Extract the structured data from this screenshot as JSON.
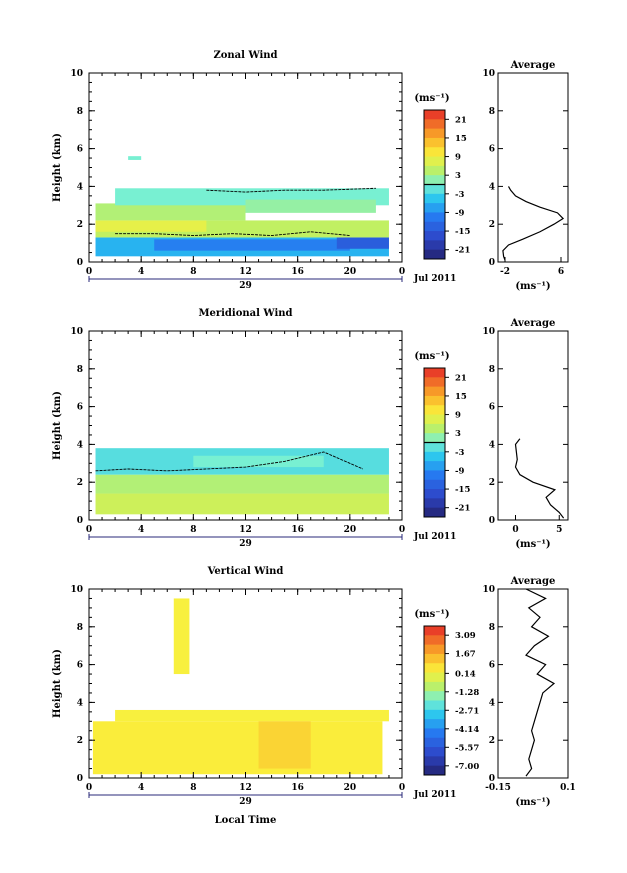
{
  "figure": {
    "x_axis_title": "Local Time",
    "date_label": "Jul 2011",
    "day_label": "29",
    "y_axis_title": "Height (km)",
    "unit_label": "(ms⁻¹)",
    "average_title": "Average",
    "avg_x_unit": "(ms⁻¹)"
  },
  "panels": [
    {
      "title": "Zonal Wind",
      "colorbar_ticks": [
        "21",
        "15",
        "9",
        "3",
        "-3",
        "-9",
        "-15",
        "-21"
      ]
    },
    {
      "title": "Meridional Wind",
      "colorbar_ticks": [
        "21",
        "15",
        "9",
        "3",
        "-3",
        "-9",
        "-15",
        "-21"
      ]
    },
    {
      "title": "Vertical Wind",
      "colorbar_ticks": [
        "3.09",
        "1.67",
        "0.14",
        "-1.28",
        "-2.71",
        "-4.14",
        "-5.57",
        "-7.00"
      ]
    }
  ],
  "chart_data": [
    {
      "type": "heatmap",
      "title": "Zonal Wind",
      "xlabel": "",
      "ylabel": "Height (km)",
      "xticks": [
        "0",
        "4",
        "8",
        "12",
        "16",
        "20",
        "0"
      ],
      "yticks": [
        "0",
        "2",
        "4",
        "6",
        "8",
        "10"
      ],
      "xlim": [
        0,
        24
      ],
      "ylim": [
        0,
        10
      ],
      "colorbar": {
        "unit": "ms-1",
        "range": [
          -24,
          24
        ],
        "ticks": [
          21,
          15,
          9,
          3,
          -3,
          -9,
          -15,
          -21
        ]
      },
      "regions": [
        {
          "t0": 0.5,
          "t1": 23,
          "h0": 0.3,
          "h1": 1.3,
          "value": -6
        },
        {
          "t0": 5,
          "t1": 20,
          "h0": 0.6,
          "h1": 1.2,
          "value": -10
        },
        {
          "t0": 19,
          "t1": 23,
          "h0": 0.7,
          "h1": 1.3,
          "value": -14
        },
        {
          "t0": 0.5,
          "t1": 23,
          "h0": 1.3,
          "h1": 2.2,
          "value": 5
        },
        {
          "t0": 0.5,
          "t1": 9,
          "h0": 1.6,
          "h1": 2.2,
          "value": 8
        },
        {
          "t0": 0.5,
          "t1": 12,
          "h0": 2.2,
          "h1": 3.1,
          "value": 4
        },
        {
          "t0": 2,
          "t1": 23,
          "h0": 3.0,
          "h1": 3.9,
          "value": 0
        },
        {
          "t0": 12,
          "t1": 22,
          "h0": 2.6,
          "h1": 3.3,
          "value": 2
        },
        {
          "t0": 3,
          "t1": 4,
          "h0": 5.4,
          "h1": 5.6,
          "value": 0
        }
      ],
      "contours": [
        {
          "level": 0,
          "t": [
            2,
            5,
            8,
            11,
            14,
            17,
            20
          ],
          "h": [
            1.5,
            1.5,
            1.4,
            1.5,
            1.4,
            1.6,
            1.4
          ]
        },
        {
          "level": 0,
          "t": [
            9,
            12,
            15,
            18,
            22
          ],
          "h": [
            3.8,
            3.7,
            3.8,
            3.8,
            3.9
          ]
        }
      ],
      "average_profile": {
        "title": "Average",
        "xlabel": "(ms-1)",
        "xlim": [
          -3,
          7
        ],
        "xticks": [
          -2,
          6
        ],
        "height": [
          0.1,
          0.3,
          0.6,
          0.9,
          1.2,
          1.6,
          2.0,
          2.3,
          2.6,
          2.9,
          3.2,
          3.5,
          3.8,
          4.0
        ],
        "value": [
          -2.0,
          -2.2,
          -2.3,
          -1.5,
          0.5,
          3.0,
          5.0,
          6.3,
          5.5,
          3.0,
          1.0,
          -0.5,
          -1.2,
          -1.5
        ]
      }
    },
    {
      "type": "heatmap",
      "title": "Meridional Wind",
      "xlabel": "",
      "ylabel": "Height (km)",
      "xticks": [
        "0",
        "4",
        "8",
        "12",
        "16",
        "20",
        "0"
      ],
      "yticks": [
        "0",
        "2",
        "4",
        "6",
        "8",
        "10"
      ],
      "xlim": [
        0,
        24
      ],
      "ylim": [
        0,
        10
      ],
      "colorbar": {
        "unit": "ms-1",
        "range": [
          -24,
          24
        ],
        "ticks": [
          21,
          15,
          9,
          3,
          -3,
          -9,
          -15,
          -21
        ]
      },
      "regions": [
        {
          "t0": 0.5,
          "t1": 23,
          "h0": 0.3,
          "h1": 1.4,
          "value": 6
        },
        {
          "t0": 0.5,
          "t1": 23,
          "h0": 1.4,
          "h1": 2.4,
          "value": 4
        },
        {
          "t0": 0.5,
          "t1": 23,
          "h0": 2.4,
          "h1": 3.8,
          "value": -2
        },
        {
          "t0": 8,
          "t1": 18,
          "h0": 2.8,
          "h1": 3.4,
          "value": 0
        }
      ],
      "contours": [
        {
          "level": 0,
          "t": [
            0.5,
            3,
            6,
            9,
            12,
            15,
            18,
            21
          ],
          "h": [
            2.6,
            2.7,
            2.6,
            2.7,
            2.8,
            3.1,
            3.6,
            2.7
          ]
        }
      ],
      "average_profile": {
        "title": "Average",
        "xlabel": "(ms-1)",
        "xlim": [
          -2,
          6
        ],
        "xticks": [
          0,
          5
        ],
        "height": [
          0.1,
          0.4,
          0.8,
          1.2,
          1.6,
          2.0,
          2.4,
          2.8,
          3.2,
          3.6,
          4.0,
          4.3
        ],
        "value": [
          5.5,
          5.0,
          4.0,
          3.5,
          4.5,
          2.0,
          0.5,
          0.0,
          0.2,
          0.1,
          0.0,
          0.5
        ]
      }
    },
    {
      "type": "heatmap",
      "title": "Vertical Wind",
      "xlabel": "Local Time",
      "ylabel": "Height (km)",
      "xticks": [
        "0",
        "4",
        "8",
        "12",
        "16",
        "20",
        "0"
      ],
      "yticks": [
        "0",
        "2",
        "4",
        "6",
        "8",
        "10"
      ],
      "xlim": [
        0,
        24
      ],
      "ylim": [
        0,
        10
      ],
      "colorbar": {
        "unit": "ms-1",
        "range": [
          -7.71,
          3.8
        ],
        "ticks": [
          3.09,
          1.67,
          0.14,
          -1.28,
          -2.71,
          -4.14,
          -5.57,
          -7.0
        ]
      },
      "regions": [
        {
          "t0": 0.3,
          "t1": 22.5,
          "h0": 0.2,
          "h1": 3.0,
          "value": 0.4
        },
        {
          "t0": 2,
          "t1": 23,
          "h0": 3.0,
          "h1": 3.6,
          "value": 0.3
        },
        {
          "t0": 6.5,
          "t1": 7.7,
          "h0": 5.5,
          "h1": 9.5,
          "value": 0.3
        },
        {
          "t0": 13,
          "t1": 17,
          "h0": 0.5,
          "h1": 3.0,
          "value": 0.9
        }
      ],
      "contours": [],
      "average_profile": {
        "title": "Average",
        "xlabel": "(ms-1)",
        "xlim": [
          -0.15,
          0.1
        ],
        "xticks": [
          -0.15,
          0.1
        ],
        "height": [
          0.1,
          0.5,
          1.0,
          1.5,
          2.0,
          2.5,
          3.0,
          3.5,
          4.0,
          4.5,
          5.0,
          5.5,
          6.0,
          6.5,
          7.0,
          7.5,
          8.0,
          8.5,
          9.0,
          9.5,
          10.0
        ],
        "value": [
          -0.05,
          -0.03,
          -0.04,
          -0.03,
          -0.02,
          -0.03,
          -0.02,
          -0.01,
          0.0,
          0.01,
          0.05,
          -0.01,
          0.02,
          -0.05,
          -0.02,
          0.03,
          -0.03,
          0.0,
          -0.04,
          0.02,
          -0.05
        ]
      }
    }
  ]
}
